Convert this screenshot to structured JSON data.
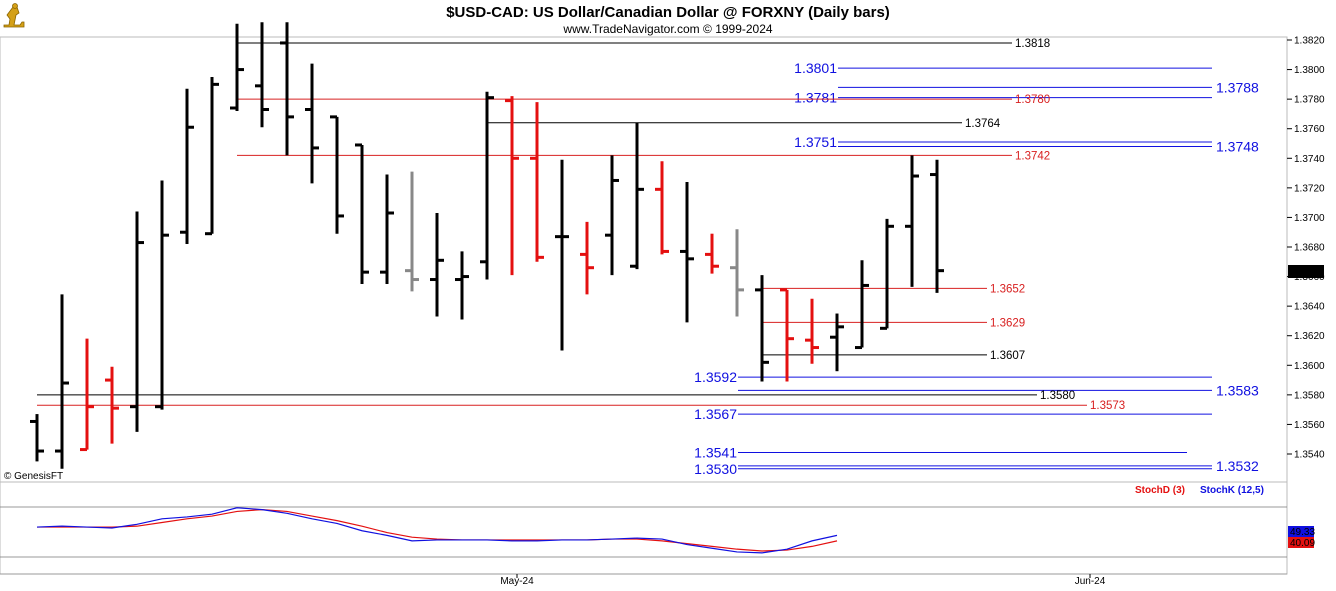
{
  "header": {
    "title": "$USD-CAD:  US Dollar/Canadian Dollar @ FORXNY  (Daily bars)",
    "source": "www.TradeNavigator.com © 1999-2024",
    "logo_icon": "trader-figure-logo",
    "copyright": "© GenesisFT"
  },
  "colors": {
    "black": "#000000",
    "red": "#e41010",
    "gray": "#888888",
    "blue": "#1010e0",
    "level_red": "#d82020"
  },
  "chart_data": {
    "type": "ohlc",
    "title": "$USD-CAD:  US Dollar/Canadian Dollar @ FORXNY  (Daily bars)",
    "ylim": [
      1.352,
      1.3825
    ],
    "y_ticks": [
      "1.3820",
      "1.3800",
      "1.3780",
      "1.3760",
      "1.3740",
      "1.3720",
      "1.3700",
      "1.3680",
      "1.3660",
      "1.3640",
      "1.3620",
      "1.3600",
      "1.3580",
      "1.3560",
      "1.3540"
    ],
    "x_labels": [
      "May-24",
      "Jun-24"
    ],
    "last_price": "1.3664",
    "bars": [
      {
        "o": 1.3562,
        "h": 1.3567,
        "l": 1.3535,
        "c": 1.3542,
        "color": "black"
      },
      {
        "o": 1.3542,
        "h": 1.3648,
        "l": 1.353,
        "c": 1.3588,
        "color": "black"
      },
      {
        "o": 1.3543,
        "h": 1.3618,
        "l": 1.3543,
        "c": 1.3572,
        "color": "red"
      },
      {
        "o": 1.359,
        "h": 1.3599,
        "l": 1.3547,
        "c": 1.3571,
        "color": "red"
      },
      {
        "o": 1.3572,
        "h": 1.3704,
        "l": 1.3555,
        "c": 1.3683,
        "color": "black"
      },
      {
        "o": 1.3572,
        "h": 1.3725,
        "l": 1.357,
        "c": 1.3688,
        "color": "black"
      },
      {
        "o": 1.369,
        "h": 1.3787,
        "l": 1.3682,
        "c": 1.3761,
        "color": "black"
      },
      {
        "o": 1.3689,
        "h": 1.3795,
        "l": 1.3689,
        "c": 1.379,
        "color": "black"
      },
      {
        "o": 1.3774,
        "h": 1.3831,
        "l": 1.3772,
        "c": 1.38,
        "color": "black"
      },
      {
        "o": 1.3789,
        "h": 1.3832,
        "l": 1.3761,
        "c": 1.3773,
        "color": "black"
      },
      {
        "o": 1.3818,
        "h": 1.3832,
        "l": 1.3742,
        "c": 1.3768,
        "color": "black"
      },
      {
        "o": 1.3773,
        "h": 1.3804,
        "l": 1.3723,
        "c": 1.3747,
        "color": "black"
      },
      {
        "o": 1.3768,
        "h": 1.3768,
        "l": 1.3689,
        "c": 1.3701,
        "color": "black"
      },
      {
        "o": 1.3749,
        "h": 1.3749,
        "l": 1.3655,
        "c": 1.3663,
        "color": "black"
      },
      {
        "o": 1.3663,
        "h": 1.3729,
        "l": 1.3655,
        "c": 1.3703,
        "color": "black"
      },
      {
        "o": 1.3664,
        "h": 1.3731,
        "l": 1.365,
        "c": 1.3658,
        "color": "gray"
      },
      {
        "o": 1.3658,
        "h": 1.3703,
        "l": 1.3633,
        "c": 1.3671,
        "color": "black"
      },
      {
        "o": 1.3658,
        "h": 1.3677,
        "l": 1.3631,
        "c": 1.366,
        "color": "black"
      },
      {
        "o": 1.367,
        "h": 1.3785,
        "l": 1.3658,
        "c": 1.3781,
        "color": "black"
      },
      {
        "o": 1.3779,
        "h": 1.3782,
        "l": 1.3661,
        "c": 1.374,
        "color": "red"
      },
      {
        "o": 1.374,
        "h": 1.3778,
        "l": 1.367,
        "c": 1.3673,
        "color": "red"
      },
      {
        "o": 1.3687,
        "h": 1.3739,
        "l": 1.361,
        "c": 1.3687,
        "color": "black"
      },
      {
        "o": 1.3675,
        "h": 1.3697,
        "l": 1.3648,
        "c": 1.3666,
        "color": "red"
      },
      {
        "o": 1.3688,
        "h": 1.3742,
        "l": 1.3661,
        "c": 1.3725,
        "color": "black"
      },
      {
        "o": 1.3667,
        "h": 1.3764,
        "l": 1.3665,
        "c": 1.3719,
        "color": "black"
      },
      {
        "o": 1.3719,
        "h": 1.3738,
        "l": 1.3675,
        "c": 1.3677,
        "color": "red"
      },
      {
        "o": 1.3677,
        "h": 1.3724,
        "l": 1.3629,
        "c": 1.3672,
        "color": "black"
      },
      {
        "o": 1.3675,
        "h": 1.3689,
        "l": 1.3662,
        "c": 1.3667,
        "color": "red"
      },
      {
        "o": 1.3666,
        "h": 1.3692,
        "l": 1.3633,
        "c": 1.3651,
        "color": "gray"
      },
      {
        "o": 1.3651,
        "h": 1.3661,
        "l": 1.3589,
        "c": 1.3602,
        "color": "black"
      },
      {
        "o": 1.3651,
        "h": 1.3651,
        "l": 1.3589,
        "c": 1.3618,
        "color": "red"
      },
      {
        "o": 1.3617,
        "h": 1.3645,
        "l": 1.3601,
        "c": 1.3612,
        "color": "red"
      },
      {
        "o": 1.3619,
        "h": 1.3635,
        "l": 1.3596,
        "c": 1.3626,
        "color": "black"
      },
      {
        "o": 1.3612,
        "h": 1.3671,
        "l": 1.3612,
        "c": 1.3654,
        "color": "black"
      },
      {
        "o": 1.3625,
        "h": 1.3699,
        "l": 1.3625,
        "c": 1.3694,
        "color": "black"
      },
      {
        "o": 1.3694,
        "h": 1.3742,
        "l": 1.3653,
        "c": 1.3728,
        "color": "black"
      },
      {
        "o": 1.3729,
        "h": 1.3739,
        "l": 1.3649,
        "c": 1.3664,
        "color": "black"
      }
    ],
    "levels": [
      {
        "value": 1.3818,
        "label": "1.3818",
        "color": "black",
        "x0": 237,
        "x1": 1012,
        "label_side": "right"
      },
      {
        "value": 1.3801,
        "label": "1.3801",
        "color": "blue",
        "x0": 838,
        "x1": 1212,
        "label_side": "left"
      },
      {
        "value": 1.3788,
        "label": "1.3788",
        "color": "blue",
        "x0": 838,
        "x1": 1212,
        "label_side": "far"
      },
      {
        "value": 1.3781,
        "label": "1.3781",
        "color": "blue",
        "x0": 838,
        "x1": 1212,
        "label_side": "left"
      },
      {
        "value": 1.378,
        "label": "1.3780",
        "color": "red",
        "x0": 237,
        "x1": 1012,
        "label_side": "right"
      },
      {
        "value": 1.3764,
        "label": "1.3764",
        "color": "black",
        "x0": 487,
        "x1": 962,
        "label_side": "right"
      },
      {
        "value": 1.3751,
        "label": "1.3751",
        "color": "blue",
        "x0": 838,
        "x1": 1212,
        "label_side": "left"
      },
      {
        "value": 1.3748,
        "label": "1.3748",
        "color": "blue",
        "x0": 838,
        "x1": 1212,
        "label_side": "far"
      },
      {
        "value": 1.3742,
        "label": "1.3742",
        "color": "red",
        "x0": 237,
        "x1": 1012,
        "label_side": "right"
      },
      {
        "value": 1.3652,
        "label": "1.3652",
        "color": "red",
        "x0": 762,
        "x1": 987,
        "label_side": "right"
      },
      {
        "value": 1.3629,
        "label": "1.3629",
        "color": "red",
        "x0": 762,
        "x1": 987,
        "label_side": "right"
      },
      {
        "value": 1.3607,
        "label": "1.3607",
        "color": "black",
        "x0": 762,
        "x1": 987,
        "label_side": "right"
      },
      {
        "value": 1.3592,
        "label": "1.3592",
        "color": "blue",
        "x0": 738,
        "x1": 1212,
        "label_side": "left"
      },
      {
        "value": 1.3583,
        "label": "1.3583",
        "color": "blue",
        "x0": 738,
        "x1": 1212,
        "label_side": "far"
      },
      {
        "value": 1.358,
        "label": "1.3580",
        "color": "black",
        "x0": 37,
        "x1": 1037,
        "label_side": "right"
      },
      {
        "value": 1.3573,
        "label": "1.3573",
        "color": "red",
        "x0": 37,
        "x1": 1087,
        "label_side": "right"
      },
      {
        "value": 1.3567,
        "label": "1.3567",
        "color": "blue",
        "x0": 738,
        "x1": 1212,
        "label_side": "left"
      },
      {
        "value": 1.3541,
        "label": "1.3541",
        "color": "blue",
        "x0": 738,
        "x1": 1187,
        "label_side": "left"
      },
      {
        "value": 1.3532,
        "label": "1.3532",
        "color": "blue",
        "x0": 738,
        "x1": 1212,
        "label_side": "far"
      },
      {
        "value": 1.353,
        "label": "1.3530",
        "color": "blue",
        "x0": 738,
        "x1": 1212,
        "label_side": "left"
      }
    ],
    "stochastic": {
      "legend": [
        "StochD (3)",
        "StochK (12,5)"
      ],
      "values_label": [
        "49.33",
        "40.09"
      ],
      "k": [
        51,
        52,
        51,
        50,
        54,
        60,
        62,
        65,
        72,
        70,
        66,
        60,
        55,
        47,
        42,
        36,
        37,
        37,
        37,
        36,
        36,
        37,
        37,
        38,
        39,
        38,
        32,
        28,
        24,
        23,
        27,
        36,
        42
      ],
      "d": [
        51,
        51,
        51,
        51,
        52,
        56,
        60,
        63,
        68,
        70,
        68,
        63,
        58,
        52,
        45,
        40,
        38,
        37,
        37,
        37,
        37,
        37,
        37,
        38,
        38,
        36,
        33,
        30,
        27,
        25,
        26,
        30,
        36
      ]
    }
  }
}
